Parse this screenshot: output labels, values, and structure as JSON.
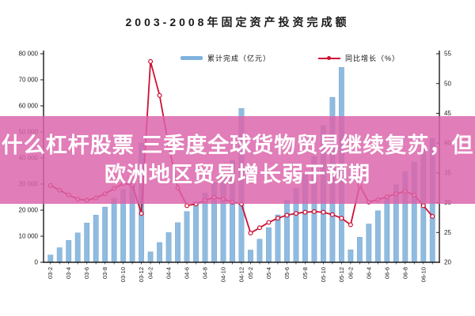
{
  "title": "2003-2008年固定资产投资完成额",
  "overlay": {
    "line1": "什么杠杆股票 三季度全球货物贸易继续复苏，但",
    "line2": "欧洲地区贸易增长弱于预期",
    "bg_color": "#db64aa",
    "text_color": "#ffffff"
  },
  "legend": {
    "bar_label": "累计完成（亿元）",
    "line_label": "同比增长（%）"
  },
  "colors": {
    "bar_fill": "#8fbbe0",
    "bar_edge": "#6d9ec9",
    "line_red": "#cc1133",
    "axis_black": "#1a1a1a"
  },
  "chart_data": {
    "type": "bar",
    "title": "2003-2008年固定资产投资完成额",
    "note": "blue bars = cumulative fixed-asset investment (100M yuan, left axis); red line = YoY growth % (right axis); cumulative bars reset each February",
    "categories": [
      "03-2",
      "03-3",
      "03-4",
      "03-5",
      "03-6",
      "03-7",
      "03-8",
      "03-9",
      "03-10",
      "03-11",
      "03-12",
      "04-2",
      "04-3",
      "04-4",
      "04-5",
      "04-6",
      "04-7",
      "04-8",
      "04-9",
      "04-10",
      "04-11",
      "04-12",
      "05-2",
      "05-3",
      "05-4",
      "05-5",
      "05-6",
      "05-7",
      "05-8",
      "05-9",
      "05-10",
      "05-11",
      "05-12",
      "06-2",
      "06-3",
      "06-4",
      "06-5",
      "06-6",
      "06-7",
      "06-8",
      "06-9",
      "06-10",
      "06-11"
    ],
    "series": [
      {
        "name": "累计完成（亿元）",
        "type": "bar",
        "axis": "left",
        "values": [
          2800,
          5600,
          8400,
          11300,
          15100,
          18100,
          21200,
          24600,
          27900,
          31500,
          45800,
          4000,
          7600,
          11400,
          15200,
          19500,
          23000,
          26600,
          30600,
          34600,
          39100,
          59000,
          4700,
          8900,
          13300,
          18200,
          23800,
          28300,
          33800,
          40500,
          52500,
          63300,
          74800,
          4800,
          9600,
          14700,
          19800,
          25200,
          29800,
          34800,
          38500,
          43500,
          47500
        ]
      },
      {
        "name": "同比增长（%）",
        "type": "line",
        "axis": "right",
        "values": [
          32.9,
          32.1,
          31.3,
          30.6,
          30.4,
          30.8,
          31.5,
          32.4,
          33.2,
          33.0,
          28.2,
          53.7,
          48.0,
          39.5,
          32.5,
          29.5,
          29.8,
          30.4,
          30.9,
          30.6,
          30.1,
          29.8,
          24.9,
          25.8,
          26.7,
          27.4,
          27.9,
          28.2,
          28.4,
          28.5,
          28.4,
          28.0,
          27.4,
          26.3,
          32.9,
          30.1,
          30.5,
          31.0,
          31.5,
          31.9,
          31.3,
          29.5,
          27.7
        ]
      }
    ],
    "x_ticks": [
      {
        "i": 0,
        "label": "03-2"
      },
      {
        "i": 2,
        "label": "03-4"
      },
      {
        "i": 4,
        "label": "03-6"
      },
      {
        "i": 6,
        "label": "03-8"
      },
      {
        "i": 8,
        "label": "03-10"
      },
      {
        "i": 10,
        "label": "03-12"
      },
      {
        "i": 11,
        "label": "04-2"
      },
      {
        "i": 13,
        "label": "04-4"
      },
      {
        "i": 15,
        "label": "04-6"
      },
      {
        "i": 17,
        "label": "04-8"
      },
      {
        "i": 19,
        "label": "04-10"
      },
      {
        "i": 21,
        "label": "04-12"
      },
      {
        "i": 22,
        "label": "05-2"
      },
      {
        "i": 24,
        "label": "05-4"
      },
      {
        "i": 26,
        "label": "05-6"
      },
      {
        "i": 28,
        "label": "05-8"
      },
      {
        "i": 30,
        "label": "05-10"
      },
      {
        "i": 32,
        "label": "05-12"
      },
      {
        "i": 33,
        "label": "06-2"
      },
      {
        "i": 35,
        "label": "06-4"
      },
      {
        "i": 37,
        "label": "06-6"
      },
      {
        "i": 39,
        "label": "06-8"
      },
      {
        "i": 41,
        "label": "06-10"
      }
    ],
    "left_axis": {
      "min": 0,
      "max": 80000,
      "step": 10000,
      "tick_labels": [
        "80 000",
        "70 000",
        "60 000",
        "50 000",
        "40 000",
        "30 000",
        "20 000",
        "10 000",
        "0"
      ]
    },
    "right_axis": {
      "min": 20,
      "max": 55,
      "step": 5,
      "tick_labels": [
        "55",
        "50",
        "45",
        "40",
        "35",
        "30",
        "25",
        "20"
      ]
    },
    "grid": false,
    "legend_position": "top-center"
  }
}
